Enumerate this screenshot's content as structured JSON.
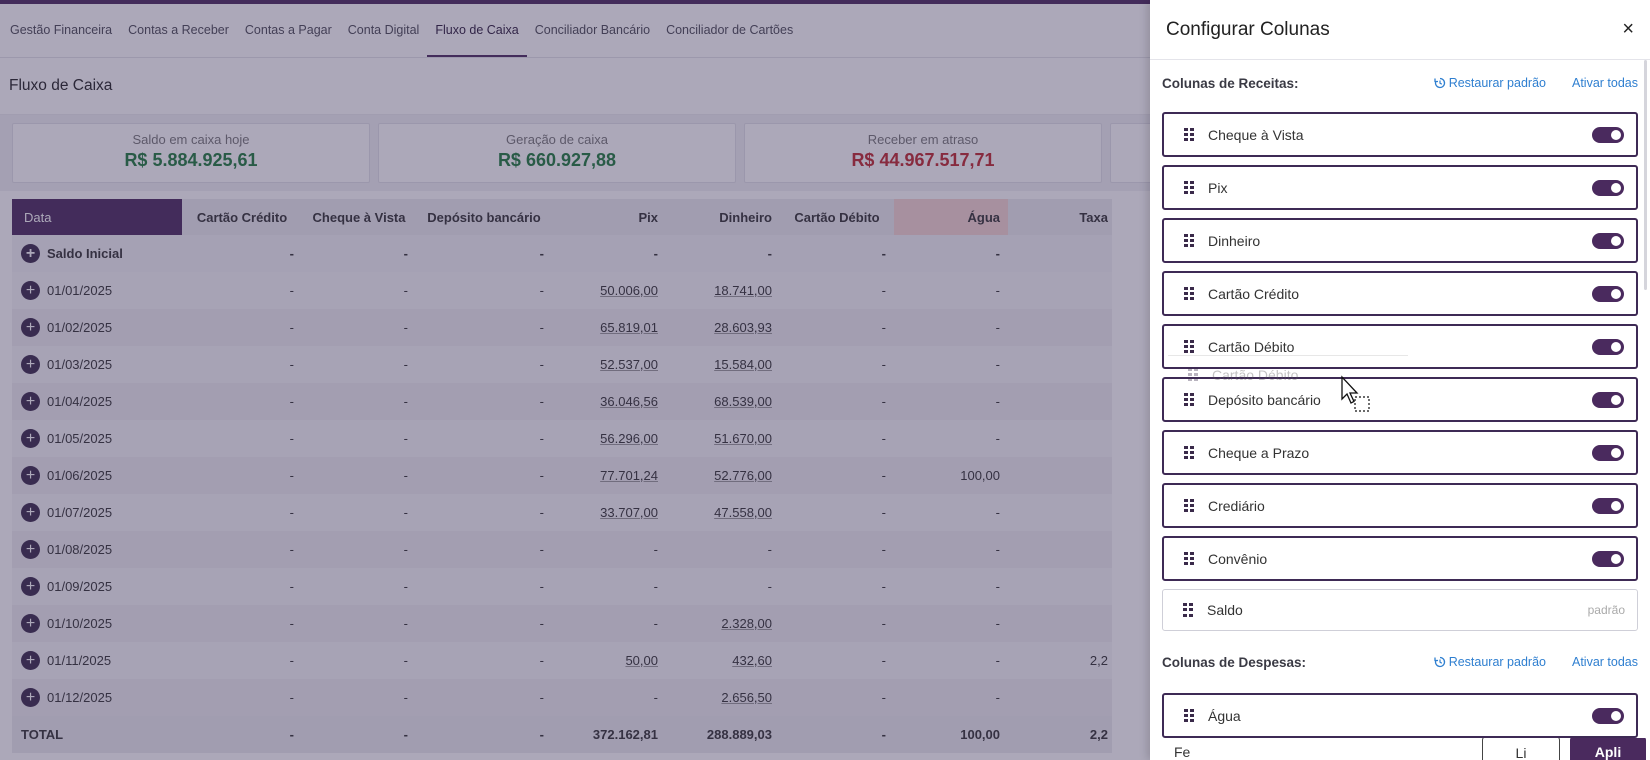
{
  "nav": {
    "tabs": [
      {
        "label": "Gestão Financeira",
        "active": false
      },
      {
        "label": "Contas a Receber",
        "active": false
      },
      {
        "label": "Contas a Pagar",
        "active": false
      },
      {
        "label": "Conta Digital",
        "active": false
      },
      {
        "label": "Fluxo de Caixa",
        "active": true
      },
      {
        "label": "Conciliador Bancário",
        "active": false
      },
      {
        "label": "Conciliador de Cartões",
        "active": false
      }
    ]
  },
  "page": {
    "title": "Fluxo de Caixa"
  },
  "cards": [
    {
      "label": "Saldo em caixa hoje",
      "value": "R$ 5.884.925,61",
      "tone": "green"
    },
    {
      "label": "Geração de caixa",
      "value": "R$ 660.927,88",
      "tone": "green"
    },
    {
      "label": "Receber em atraso",
      "value": "R$ 44.967.517,71",
      "tone": "red"
    }
  ],
  "table": {
    "headers": [
      "Data",
      "Cartão Crédito",
      "Cheque à Vista",
      "Depósito bancário",
      "Pix",
      "Dinheiro",
      "Cartão Débito",
      "Água",
      "Taxa"
    ],
    "initial_row": {
      "label": "Saldo Inicial",
      "values": [
        "-",
        "-",
        "-",
        "-",
        "-",
        "-",
        "-",
        ""
      ]
    },
    "rows": [
      {
        "date": "01/01/2025",
        "values": [
          "-",
          "-",
          "-",
          "50.006,00",
          "18.741,00",
          "-",
          "-",
          ""
        ]
      },
      {
        "date": "01/02/2025",
        "values": [
          "-",
          "-",
          "-",
          "65.819,01",
          "28.603,93",
          "-",
          "-",
          ""
        ]
      },
      {
        "date": "01/03/2025",
        "values": [
          "-",
          "-",
          "-",
          "52.537,00",
          "15.584,00",
          "-",
          "-",
          ""
        ]
      },
      {
        "date": "01/04/2025",
        "values": [
          "-",
          "-",
          "-",
          "36.046,56",
          "68.539,00",
          "-",
          "-",
          ""
        ]
      },
      {
        "date": "01/05/2025",
        "values": [
          "-",
          "-",
          "-",
          "56.296,00",
          "51.670,00",
          "-",
          "-",
          ""
        ]
      },
      {
        "date": "01/06/2025",
        "values": [
          "-",
          "-",
          "-",
          "77.701,24",
          "52.776,00",
          "-",
          "100,00",
          ""
        ]
      },
      {
        "date": "01/07/2025",
        "values": [
          "-",
          "-",
          "-",
          "33.707,00",
          "47.558,00",
          "-",
          "-",
          ""
        ]
      },
      {
        "date": "01/08/2025",
        "values": [
          "-",
          "-",
          "-",
          "-",
          "-",
          "-",
          "-",
          ""
        ]
      },
      {
        "date": "01/09/2025",
        "values": [
          "-",
          "-",
          "-",
          "-",
          "-",
          "-",
          "-",
          ""
        ]
      },
      {
        "date": "01/10/2025",
        "values": [
          "-",
          "-",
          "-",
          "-",
          "2.328,00",
          "-",
          "-",
          ""
        ]
      },
      {
        "date": "01/11/2025",
        "values": [
          "-",
          "-",
          "-",
          "50,00",
          "432,60",
          "-",
          "-",
          "2,2"
        ]
      },
      {
        "date": "01/12/2025",
        "values": [
          "-",
          "-",
          "-",
          "-",
          "2.656,50",
          "-",
          "-",
          ""
        ]
      }
    ],
    "total_row": {
      "label": "TOTAL",
      "values": [
        "-",
        "-",
        "-",
        "372.162,81",
        "288.889,03",
        "-",
        "100,00",
        "2,2"
      ]
    }
  },
  "panel": {
    "title": "Configurar Colunas",
    "close_icon": "×",
    "revenue_section": {
      "title": "Colunas de Receitas:",
      "restore_label": "Restaurar padrão",
      "activate_label": "Ativar todas",
      "items": [
        {
          "label": "Cheque à Vista",
          "enabled": true
        },
        {
          "label": "Pix",
          "enabled": true
        },
        {
          "label": "Dinheiro",
          "enabled": true
        },
        {
          "label": "Cartão Crédito",
          "enabled": true
        },
        {
          "label": "Cartão Débito",
          "enabled": true
        },
        {
          "label": "Depósito bancário",
          "enabled": true
        },
        {
          "label": "Cheque a Prazo",
          "enabled": true
        },
        {
          "label": "Crediário",
          "enabled": true
        },
        {
          "label": "Convênio",
          "enabled": true
        }
      ],
      "fixed_item": {
        "label": "Saldo",
        "tag": "padrão"
      }
    },
    "expense_section": {
      "title": "Colunas de Despesas:",
      "restore_label": "Restaurar padrão",
      "activate_label": "Ativar todas",
      "items": [
        {
          "label": "Água",
          "enabled": true
        }
      ]
    },
    "drag_ghost_label": "Cartão Débito",
    "footer": {
      "label": "Fe",
      "clear_label": "Li",
      "apply_label": "Apli"
    }
  }
}
